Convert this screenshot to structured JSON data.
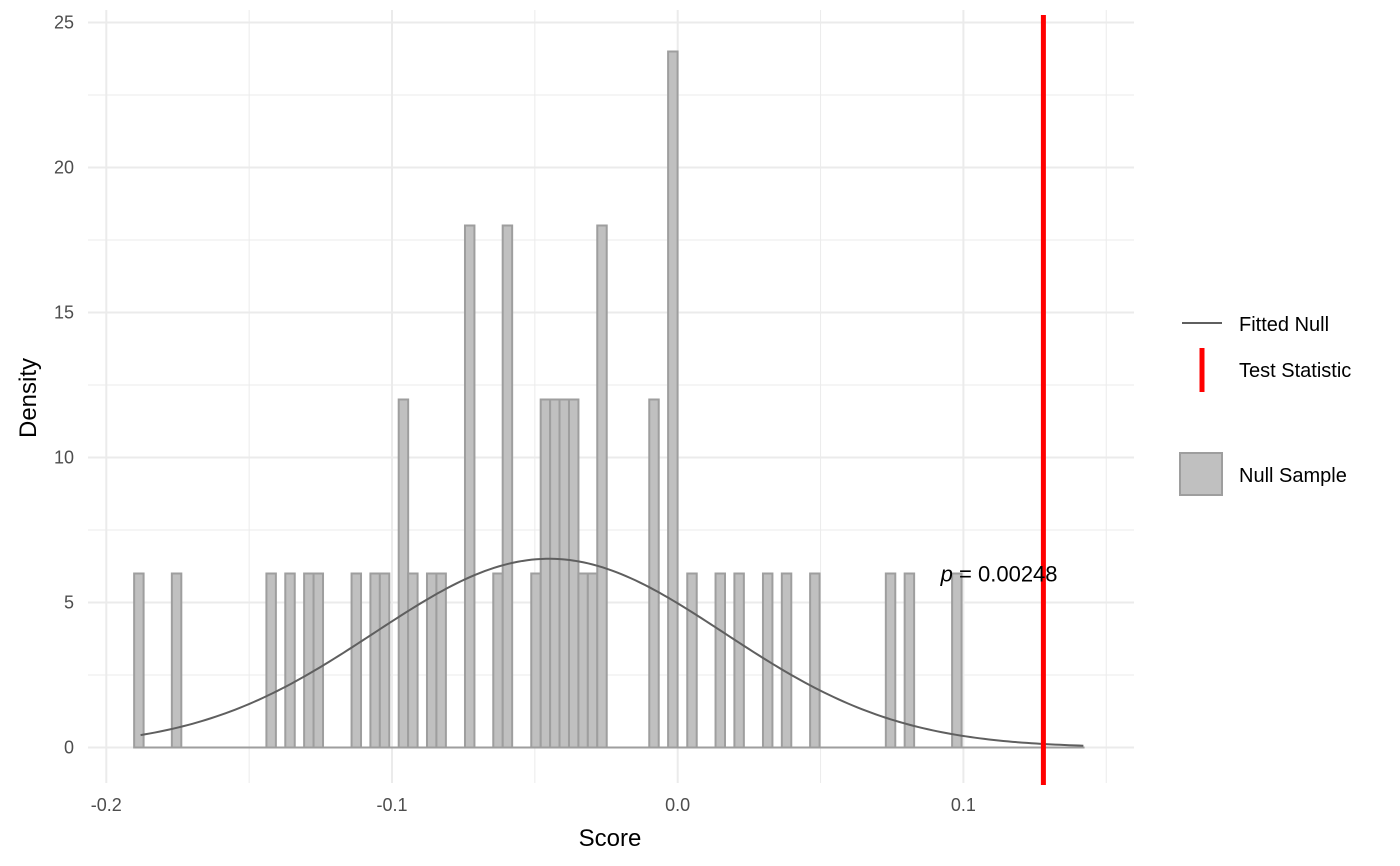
{
  "chart_data": {
    "type": "bar",
    "title": "",
    "xlabel": "Score",
    "ylabel": "Density",
    "xlim": [
      -0.2,
      0.15
    ],
    "ylim": [
      0,
      25
    ],
    "x_ticks": [
      -0.2,
      -0.1,
      0.0,
      0.1
    ],
    "x_tick_labels": [
      "-0.2",
      "-0.1",
      "0.0",
      "0.1"
    ],
    "y_ticks": [
      0,
      5,
      10,
      15,
      20,
      25
    ],
    "y_tick_labels": [
      "0",
      "5",
      "10",
      "15",
      "20",
      "25"
    ],
    "grid": true,
    "legend_position": "right",
    "colors": {
      "bar_fill": "#c0c0c0",
      "bar_stroke": "#9e9e9e",
      "fitted_null": "#5f5f5f",
      "test_statistic": "#ff0000",
      "grid": "#ebebeb"
    },
    "series": [
      {
        "name": "Null Sample",
        "bin_width": 0.00331,
        "bins": [
          {
            "x": -0.1886,
            "y": 6
          },
          {
            "x": -0.1754,
            "y": 6
          },
          {
            "x": -0.1423,
            "y": 6
          },
          {
            "x": -0.1357,
            "y": 6
          },
          {
            "x": -0.1291,
            "y": 6
          },
          {
            "x": -0.1258,
            "y": 6
          },
          {
            "x": -0.1125,
            "y": 6
          },
          {
            "x": -0.1059,
            "y": 6
          },
          {
            "x": -0.1026,
            "y": 6
          },
          {
            "x": -0.096,
            "y": 12
          },
          {
            "x": -0.0927,
            "y": 6
          },
          {
            "x": -0.0861,
            "y": 6
          },
          {
            "x": -0.0828,
            "y": 6
          },
          {
            "x": -0.0728,
            "y": 18
          },
          {
            "x": -0.0629,
            "y": 6
          },
          {
            "x": -0.0596,
            "y": 18
          },
          {
            "x": -0.0496,
            "y": 6
          },
          {
            "x": -0.0463,
            "y": 12
          },
          {
            "x": -0.043,
            "y": 12
          },
          {
            "x": -0.0397,
            "y": 12
          },
          {
            "x": -0.0364,
            "y": 12
          },
          {
            "x": -0.0331,
            "y": 6
          },
          {
            "x": -0.0298,
            "y": 6
          },
          {
            "x": -0.0265,
            "y": 18
          },
          {
            "x": -0.0083,
            "y": 12
          },
          {
            "x": -0.0017,
            "y": 24
          },
          {
            "x": 0.005,
            "y": 6
          },
          {
            "x": 0.0149,
            "y": 6
          },
          {
            "x": 0.0215,
            "y": 6
          },
          {
            "x": 0.0315,
            "y": 6
          },
          {
            "x": 0.0381,
            "y": 6
          },
          {
            "x": 0.048,
            "y": 6
          },
          {
            "x": 0.0745,
            "y": 6
          },
          {
            "x": 0.0811,
            "y": 6
          },
          {
            "x": 0.0977,
            "y": 6
          }
        ],
        "baseline_range": [
          -0.1903,
          0.1424
        ]
      },
      {
        "name": "Fitted Null",
        "distribution": "normal",
        "mean": -0.045,
        "sd": 0.0613,
        "x_range": [
          -0.188,
          0.142
        ]
      },
      {
        "name": "Test Statistic",
        "x": 0.128
      }
    ],
    "annotation": {
      "text_italic": "p",
      "text_rest": " = 0.00248",
      "x": 0.1125,
      "y": 6
    },
    "legend": {
      "lines_label": "Fitted Null",
      "vline_label": "Test Statistic",
      "fill_label": "Null Sample"
    }
  }
}
